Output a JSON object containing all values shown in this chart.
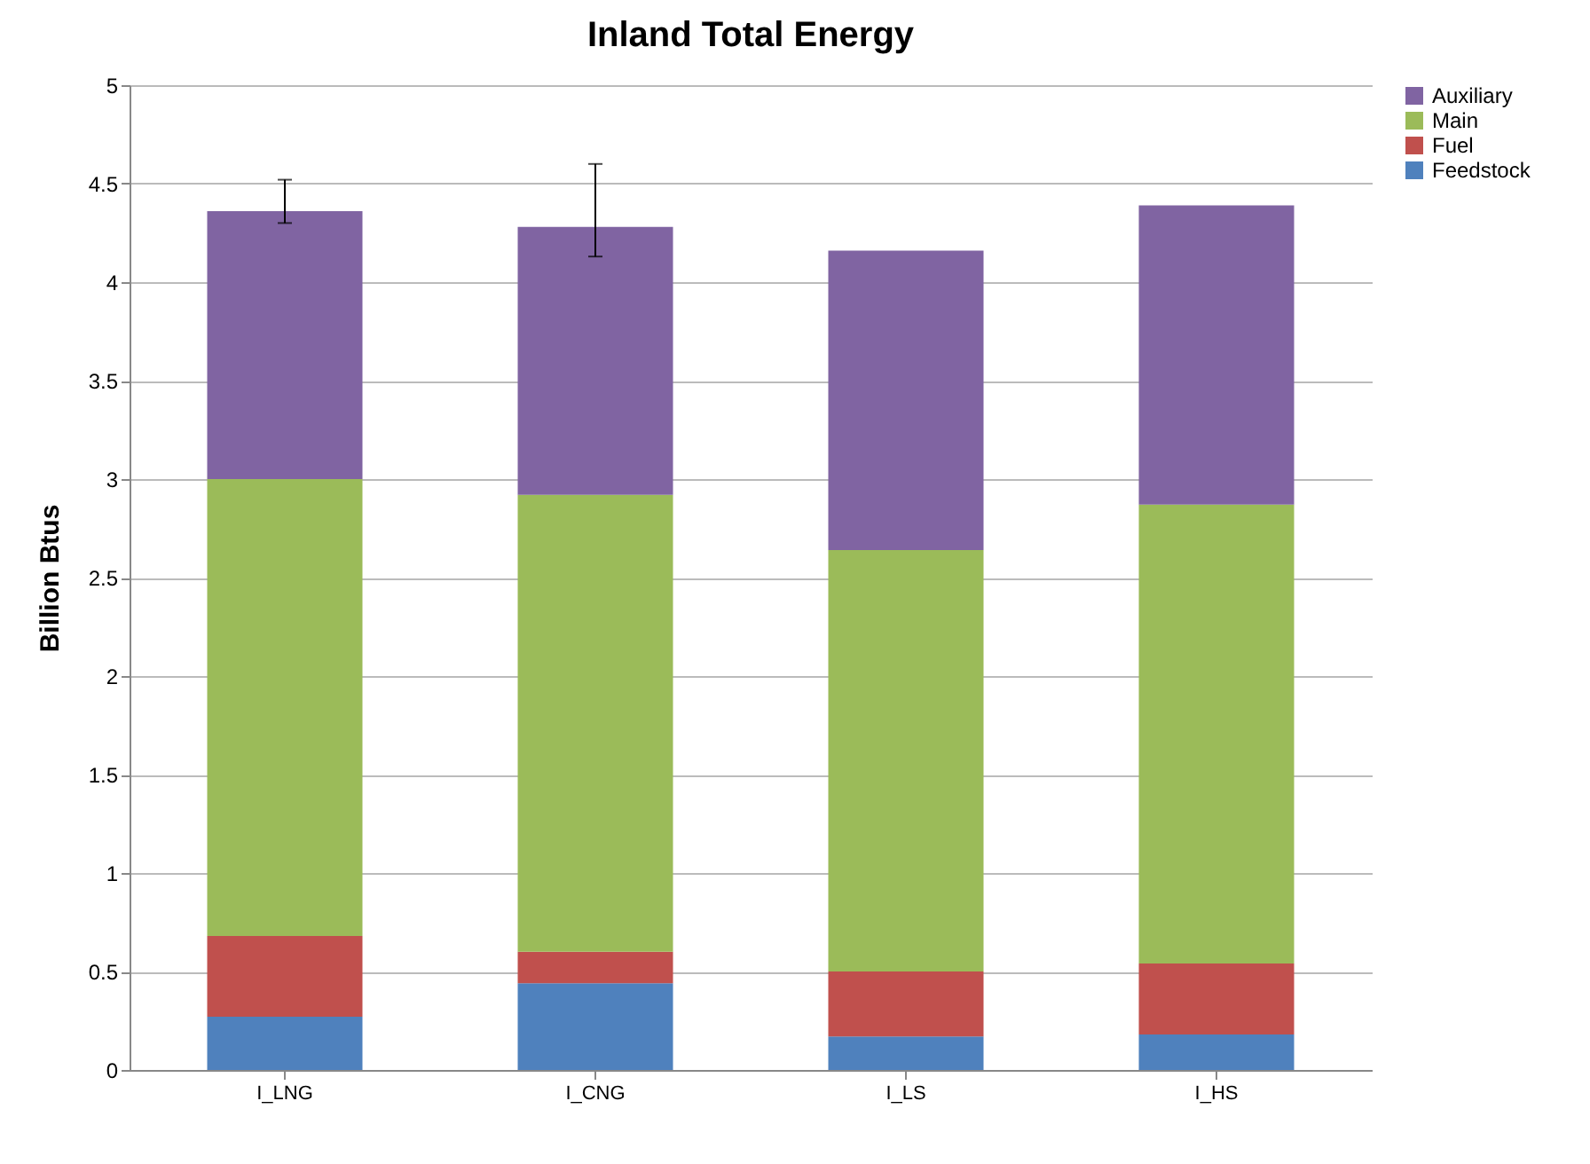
{
  "chart_data": {
    "type": "bar",
    "title": "Inland Total Energy",
    "ylabel": "Billion Btus",
    "categories": [
      "I_LNG",
      "I_CNG",
      "I_LS",
      "I_HS"
    ],
    "stacked": true,
    "series": [
      {
        "name": "Feedstock",
        "color": "#4f81bd",
        "values": [
          0.27,
          0.44,
          0.17,
          0.18
        ]
      },
      {
        "name": "Fuel",
        "color": "#c0504d",
        "values": [
          0.41,
          0.16,
          0.33,
          0.36
        ]
      },
      {
        "name": "Main",
        "color": "#9bbb59",
        "values": [
          2.32,
          2.32,
          2.14,
          2.33
        ]
      },
      {
        "name": "Auxiliary",
        "color": "#8064a2",
        "values": [
          1.36,
          1.36,
          1.52,
          1.52
        ],
        "errors": [
          [
            4.3,
            4.52
          ],
          [
            4.13,
            4.6
          ],
          null,
          null
        ]
      }
    ],
    "ylim": [
      0,
      5
    ],
    "yticks": [
      0,
      0.5,
      1,
      1.5,
      2,
      2.5,
      3,
      3.5,
      4,
      4.5,
      5
    ],
    "grid": "y",
    "legend": "right"
  }
}
